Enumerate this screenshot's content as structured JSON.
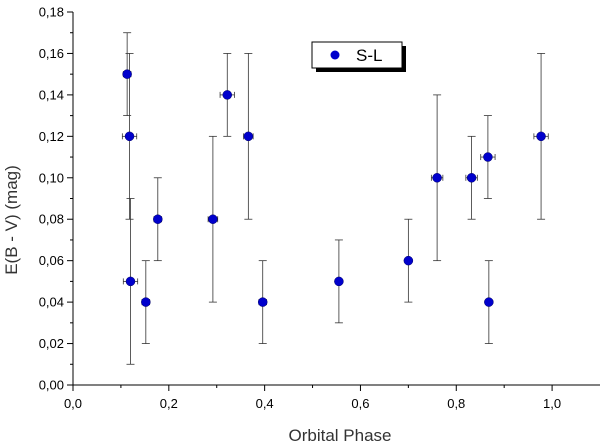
{
  "chart_data": {
    "type": "scatter",
    "title": "",
    "xlabel": "Orbital Phase",
    "ylabel": "E(B - V)   (mag)",
    "xlim": [
      0.0,
      1.1
    ],
    "ylim": [
      0.0,
      0.18
    ],
    "x_ticks": [
      "0,0",
      "0,2",
      "0,4",
      "0,6",
      "0,8",
      "1,0"
    ],
    "y_ticks": [
      "0,00",
      "0,02",
      "0,04",
      "0,06",
      "0,08",
      "0,10",
      "0,12",
      "0,14",
      "0,16",
      "0,18"
    ],
    "grid": false,
    "legend_position": "top-center",
    "series": [
      {
        "name": "S-L",
        "color": "#0000cc",
        "marker": "circle",
        "points": [
          {
            "x": 0.113,
            "y": 0.15,
            "y_low": 0.13,
            "y_high": 0.17,
            "x_err": 0.008
          },
          {
            "x": 0.118,
            "y": 0.12,
            "y_low": 0.08,
            "y_high": 0.16,
            "x_err": 0.015
          },
          {
            "x": 0.12,
            "y": 0.05,
            "y_low": 0.01,
            "y_high": 0.09,
            "x_err": 0.015
          },
          {
            "x": 0.152,
            "y": 0.04,
            "y_low": 0.02,
            "y_high": 0.06,
            "x_err": 0.008
          },
          {
            "x": 0.177,
            "y": 0.08,
            "y_low": 0.06,
            "y_high": 0.1,
            "x_err": 0.008
          },
          {
            "x": 0.292,
            "y": 0.08,
            "y_low": 0.04,
            "y_high": 0.12,
            "x_err": 0.01
          },
          {
            "x": 0.322,
            "y": 0.14,
            "y_low": 0.12,
            "y_high": 0.16,
            "x_err": 0.015
          },
          {
            "x": 0.366,
            "y": 0.12,
            "y_low": 0.08,
            "y_high": 0.16,
            "x_err": 0.01
          },
          {
            "x": 0.396,
            "y": 0.04,
            "y_low": 0.02,
            "y_high": 0.06,
            "x_err": 0.008
          },
          {
            "x": 0.555,
            "y": 0.05,
            "y_low": 0.03,
            "y_high": 0.07,
            "x_err": 0.005
          },
          {
            "x": 0.7,
            "y": 0.06,
            "y_low": 0.04,
            "y_high": 0.08,
            "x_err": 0.005
          },
          {
            "x": 0.76,
            "y": 0.1,
            "y_low": 0.06,
            "y_high": 0.14,
            "x_err": 0.012
          },
          {
            "x": 0.832,
            "y": 0.1,
            "y_low": 0.08,
            "y_high": 0.12,
            "x_err": 0.012
          },
          {
            "x": 0.866,
            "y": 0.11,
            "y_low": 0.09,
            "y_high": 0.13,
            "x_err": 0.015
          },
          {
            "x": 0.868,
            "y": 0.04,
            "y_low": 0.02,
            "y_high": 0.06,
            "x_err": 0.005
          },
          {
            "x": 0.977,
            "y": 0.12,
            "y_low": 0.08,
            "y_high": 0.16,
            "x_err": 0.015
          }
        ]
      }
    ]
  }
}
